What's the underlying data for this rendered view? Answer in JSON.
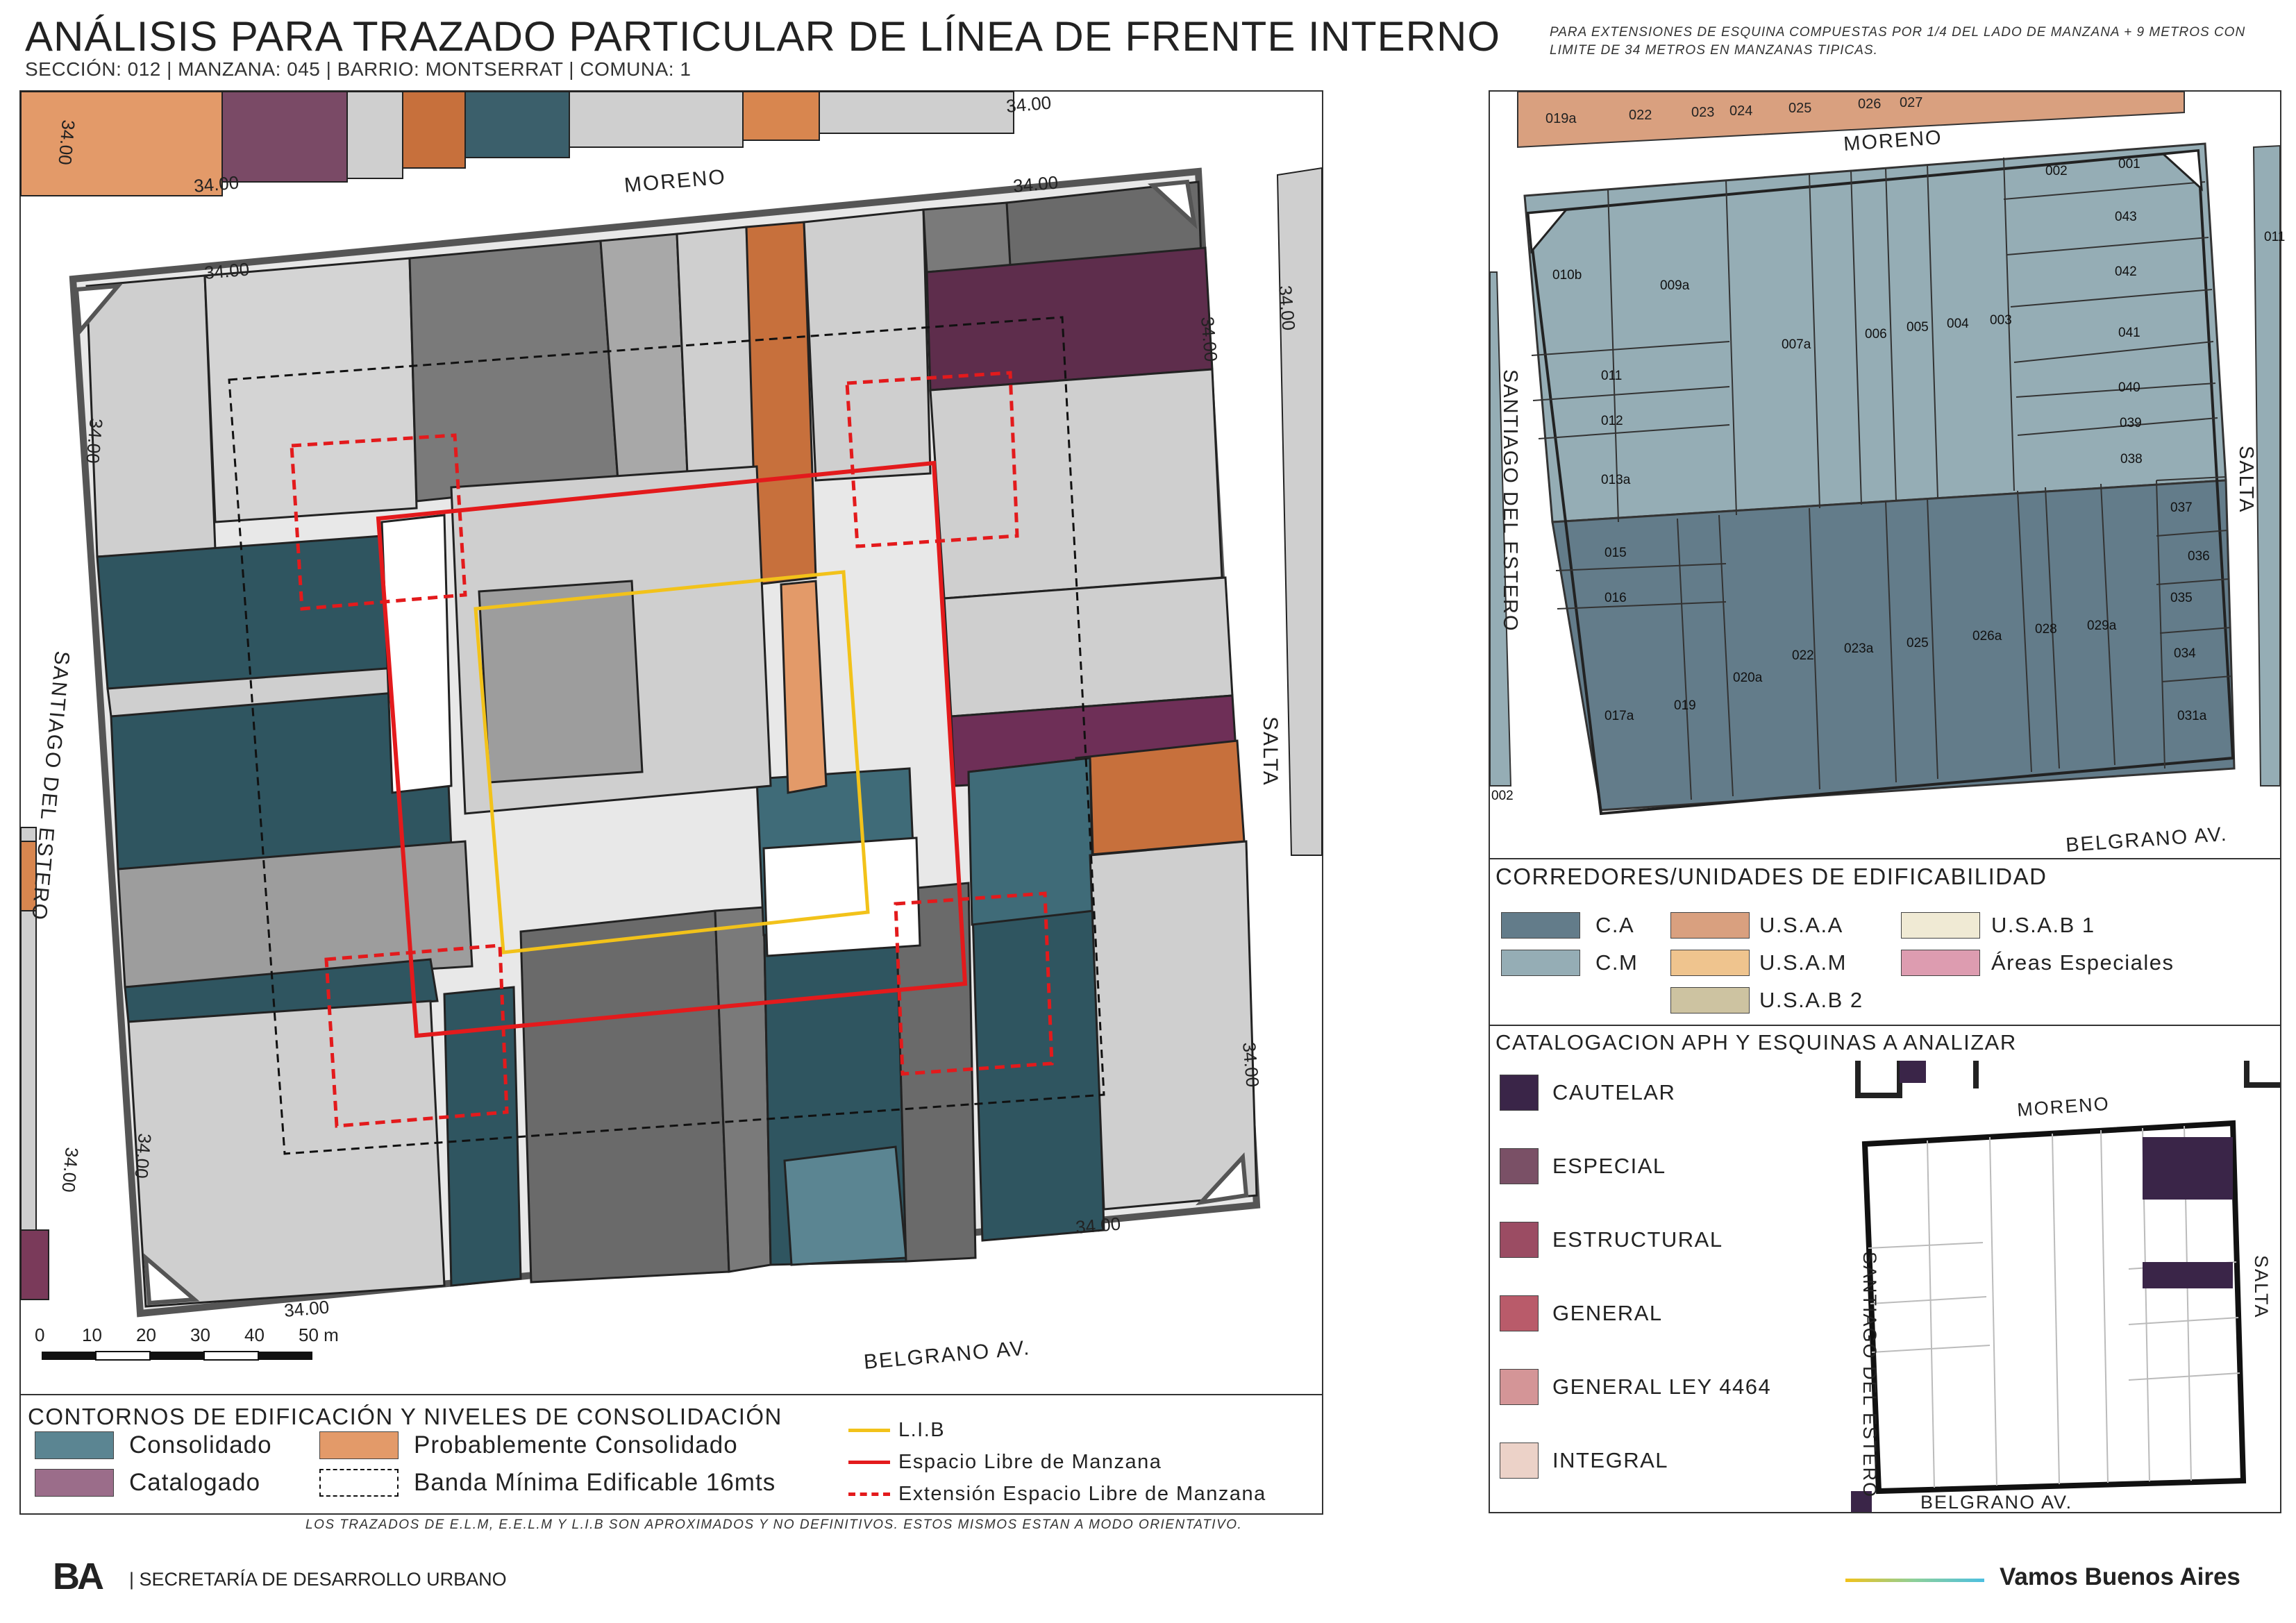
{
  "header": {
    "title": "ANÁLISIS PARA TRAZADO PARTICULAR DE LÍNEA DE FRENTE INTERNO",
    "subtitle": "SECCIÓN: 012 |  MANZANA: 045 | BARRIO: MONTSERRAT | COMUNA: 1",
    "note": "PARA EXTENSIONES DE ESQUINA COMPUESTAS POR 1/4 DEL LADO DE MANZANA + 9 METROS CON LIMITE DE 34 METROS EN MANZANAS TIPICAS."
  },
  "main_map": {
    "streets": {
      "north": "MORENO",
      "south": "BELGRANO AV.",
      "west": "SANTIAGO DEL ESTERO",
      "east": "SALTA"
    },
    "dimension_label": "34.00",
    "scale": {
      "ticks": [
        "0",
        "10",
        "20",
        "30",
        "40",
        "50 m"
      ]
    }
  },
  "legend_contornos": {
    "title": "CONTORNOS DE EDIFICACIÓN Y NIVELES DE CONSOLIDACIÓN",
    "items": [
      {
        "label": "Consolidado",
        "color": "#5b8592"
      },
      {
        "label": "Probablemente Consolidado",
        "color": "#e39a69"
      },
      {
        "label": "Catalogado",
        "color": "#9b6d8a"
      },
      {
        "label": "Banda Mínima Edificable 16mts",
        "style": "dashed-black"
      }
    ],
    "lines": [
      {
        "label": "L.I.B",
        "color": "#f2c21a"
      },
      {
        "label": "Espacio Libre de Manzana",
        "color": "#e31a1c"
      },
      {
        "label": "Extensión Espacio Libre de Manzana",
        "color": "#e31a1c",
        "style": "dashed"
      }
    ]
  },
  "parcel_map": {
    "streets": {
      "north": "MORENO",
      "south": "BELGRANO AV.",
      "west": "SANTIAGO DEL ESTERO",
      "east": "SALTA"
    },
    "top_parcels": [
      "019a",
      "022",
      "023",
      "024",
      "025",
      "026",
      "027"
    ],
    "parcels": [
      "002",
      "001",
      "043",
      "042",
      "041",
      "040",
      "039",
      "038",
      "037",
      "036",
      "035",
      "034",
      "031a",
      "029a",
      "028",
      "026a",
      "025",
      "023a",
      "022",
      "020a",
      "019",
      "017a",
      "016",
      "015",
      "013a",
      "012",
      "011",
      "010b",
      "009a",
      "007a",
      "006",
      "005",
      "004",
      "003"
    ],
    "edge_labels": [
      "011",
      "002"
    ]
  },
  "legend_corredores": {
    "title": "CORREDORES/UNIDADES DE EDIFICABILIDAD",
    "items": [
      {
        "label": "C.A",
        "color": "#637c8a"
      },
      {
        "label": "C.M",
        "color": "#95adb5"
      },
      {
        "label": "U.S.A.A",
        "color": "#d9a07f"
      },
      {
        "label": "U.S.A.M",
        "color": "#efc48e"
      },
      {
        "label": "U.S.A.B 2",
        "color": "#cdc3a1"
      },
      {
        "label": "U.S.A.B 1",
        "color": "#f0ead4"
      },
      {
        "label": "Áreas Especiales",
        "color": "#dd9cb0"
      }
    ]
  },
  "legend_aph": {
    "title": "CATALOGACION APH Y ESQUINAS A ANALIZAR",
    "items": [
      {
        "label": "CAUTELAR",
        "color": "#3a2548"
      },
      {
        "label": "ESPECIAL",
        "color": "#7a5066"
      },
      {
        "label": "ESTRUCTURAL",
        "color": "#9b4c63"
      },
      {
        "label": "GENERAL",
        "color": "#b95b6a"
      },
      {
        "label": "GENERAL LEY 4464",
        "color": "#d49597"
      },
      {
        "label": "INTEGRAL",
        "color": "#ecd2c8"
      }
    ],
    "mini_streets": {
      "north": "MORENO",
      "south": "BELGRANO AV.",
      "west": "SANTIAGO DEL ESTERO",
      "east": "SALTA"
    }
  },
  "footer": {
    "note": "LOS TRAZADOS DE E.L.M, E.E.L.M Y L.I.B SON APROXIMADOS Y NO DEFINITIVOS. ESTOS MISMOS ESTAN A MODO ORIENTATIVO.",
    "logo": "BA",
    "department": "| SECRETARÍA DE DESARROLLO URBANO",
    "brand": "Vamos Buenos Aires"
  }
}
